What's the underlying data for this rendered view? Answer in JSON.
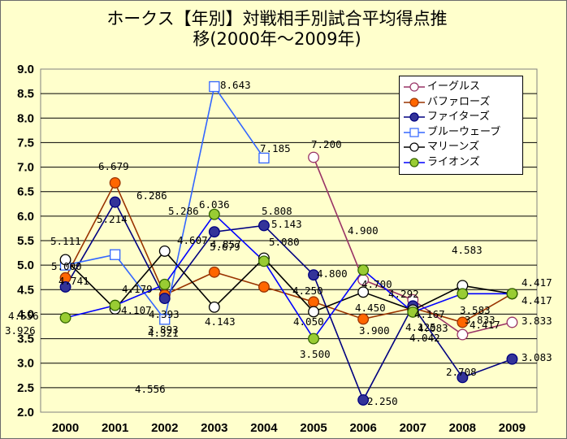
{
  "chart_data": {
    "type": "line",
    "title": "ホークス【年別】対戦相手別試合平均得点推\n移(2000年～2009年)",
    "xlabel": "",
    "ylabel": "",
    "categories": [
      "2000",
      "2001",
      "2002",
      "2003",
      "2004",
      "2005",
      "2006",
      "2007",
      "2008",
      "2009"
    ],
    "ylim": [
      2.0,
      9.0
    ],
    "yticks": [
      "2.0",
      "2.5",
      "3.0",
      "3.5",
      "4.0",
      "4.5",
      "5.0",
      "5.5",
      "6.0",
      "6.5",
      "7.0",
      "7.5",
      "8.0",
      "8.5",
      "9.0"
    ],
    "grid": true,
    "legend_position": "top-right",
    "series": [
      {
        "name": "イーグルス",
        "color": "#993366",
        "marker": "open-circle",
        "values": [
          null,
          null,
          null,
          null,
          null,
          7.2,
          4.7,
          4.292,
          3.583,
          3.833
        ]
      },
      {
        "name": "バファローズ",
        "color": "#993300",
        "marker": "orange-circle",
        "values": [
          4.741,
          6.679,
          4.393,
          4.857,
          4.556,
          4.25,
          3.9,
          4.125,
          3.833,
          4.417
        ]
      },
      {
        "name": "ファイターズ",
        "color": "#000080",
        "marker": "navy-circle",
        "values": [
          4.556,
          6.286,
          4.321,
          5.679,
          5.808,
          4.8,
          2.25,
          4.167,
          2.708,
          3.083
        ]
      },
      {
        "name": "ブルーウェーブ",
        "color": "#3366ff",
        "marker": "open-square",
        "values": [
          5.0,
          5.214,
          3.893,
          8.643,
          7.185,
          null,
          null,
          null,
          null,
          null
        ]
      },
      {
        "name": "マリーンズ",
        "color": "#000000",
        "marker": "open-circle-black",
        "values": [
          5.111,
          4.107,
          5.286,
          4.143,
          5.143,
          4.05,
          4.45,
          4.083,
          4.583,
          4.417
        ]
      },
      {
        "name": "ライオンズ",
        "color": "#0000ff",
        "marker": "green-circle",
        "values": [
          3.926,
          4.179,
          4.607,
          6.036,
          5.08,
          3.5,
          4.9,
          4.042,
          4.417,
          4.417
        ]
      }
    ],
    "data_labels": [
      {
        "text": "7.200"
      },
      {
        "text": "4.292"
      },
      {
        "text": "3.583"
      },
      {
        "text": "3.833"
      },
      {
        "text": "6.679"
      },
      {
        "text": "4.741"
      },
      {
        "text": "4.857"
      },
      {
        "text": "4.556"
      },
      {
        "text": "4.250"
      },
      {
        "text": "3.900"
      },
      {
        "text": "3.833"
      },
      {
        "text": "4.417"
      },
      {
        "text": "6.286"
      },
      {
        "text": "4.556"
      },
      {
        "text": "4.321"
      },
      {
        "text": "5.679"
      },
      {
        "text": "5.808"
      },
      {
        "text": "4.800"
      },
      {
        "text": "2.250"
      },
      {
        "text": "4.167"
      },
      {
        "text": "2.708"
      },
      {
        "text": "3.083"
      },
      {
        "text": "5.000"
      },
      {
        "text": "5.214"
      },
      {
        "text": "3.893"
      },
      {
        "text": "8.643"
      },
      {
        "text": "7.185"
      },
      {
        "text": "5.111"
      },
      {
        "text": "4.107"
      },
      {
        "text": "5.286"
      },
      {
        "text": "4.143"
      },
      {
        "text": "5.143"
      },
      {
        "text": "4.050"
      },
      {
        "text": "4.450"
      },
      {
        "text": "4.083"
      },
      {
        "text": "4.583"
      },
      {
        "text": "4.417"
      },
      {
        "text": "3.926"
      },
      {
        "text": "4.179"
      },
      {
        "text": "4.607"
      },
      {
        "text": "6.036"
      },
      {
        "text": "5.080"
      },
      {
        "text": "3.500"
      },
      {
        "text": "4.900"
      },
      {
        "text": "4.042"
      },
      {
        "text": "4.417"
      },
      {
        "text": "4.393"
      },
      {
        "text": "4.700"
      },
      {
        "text": "4.125"
      }
    ]
  }
}
